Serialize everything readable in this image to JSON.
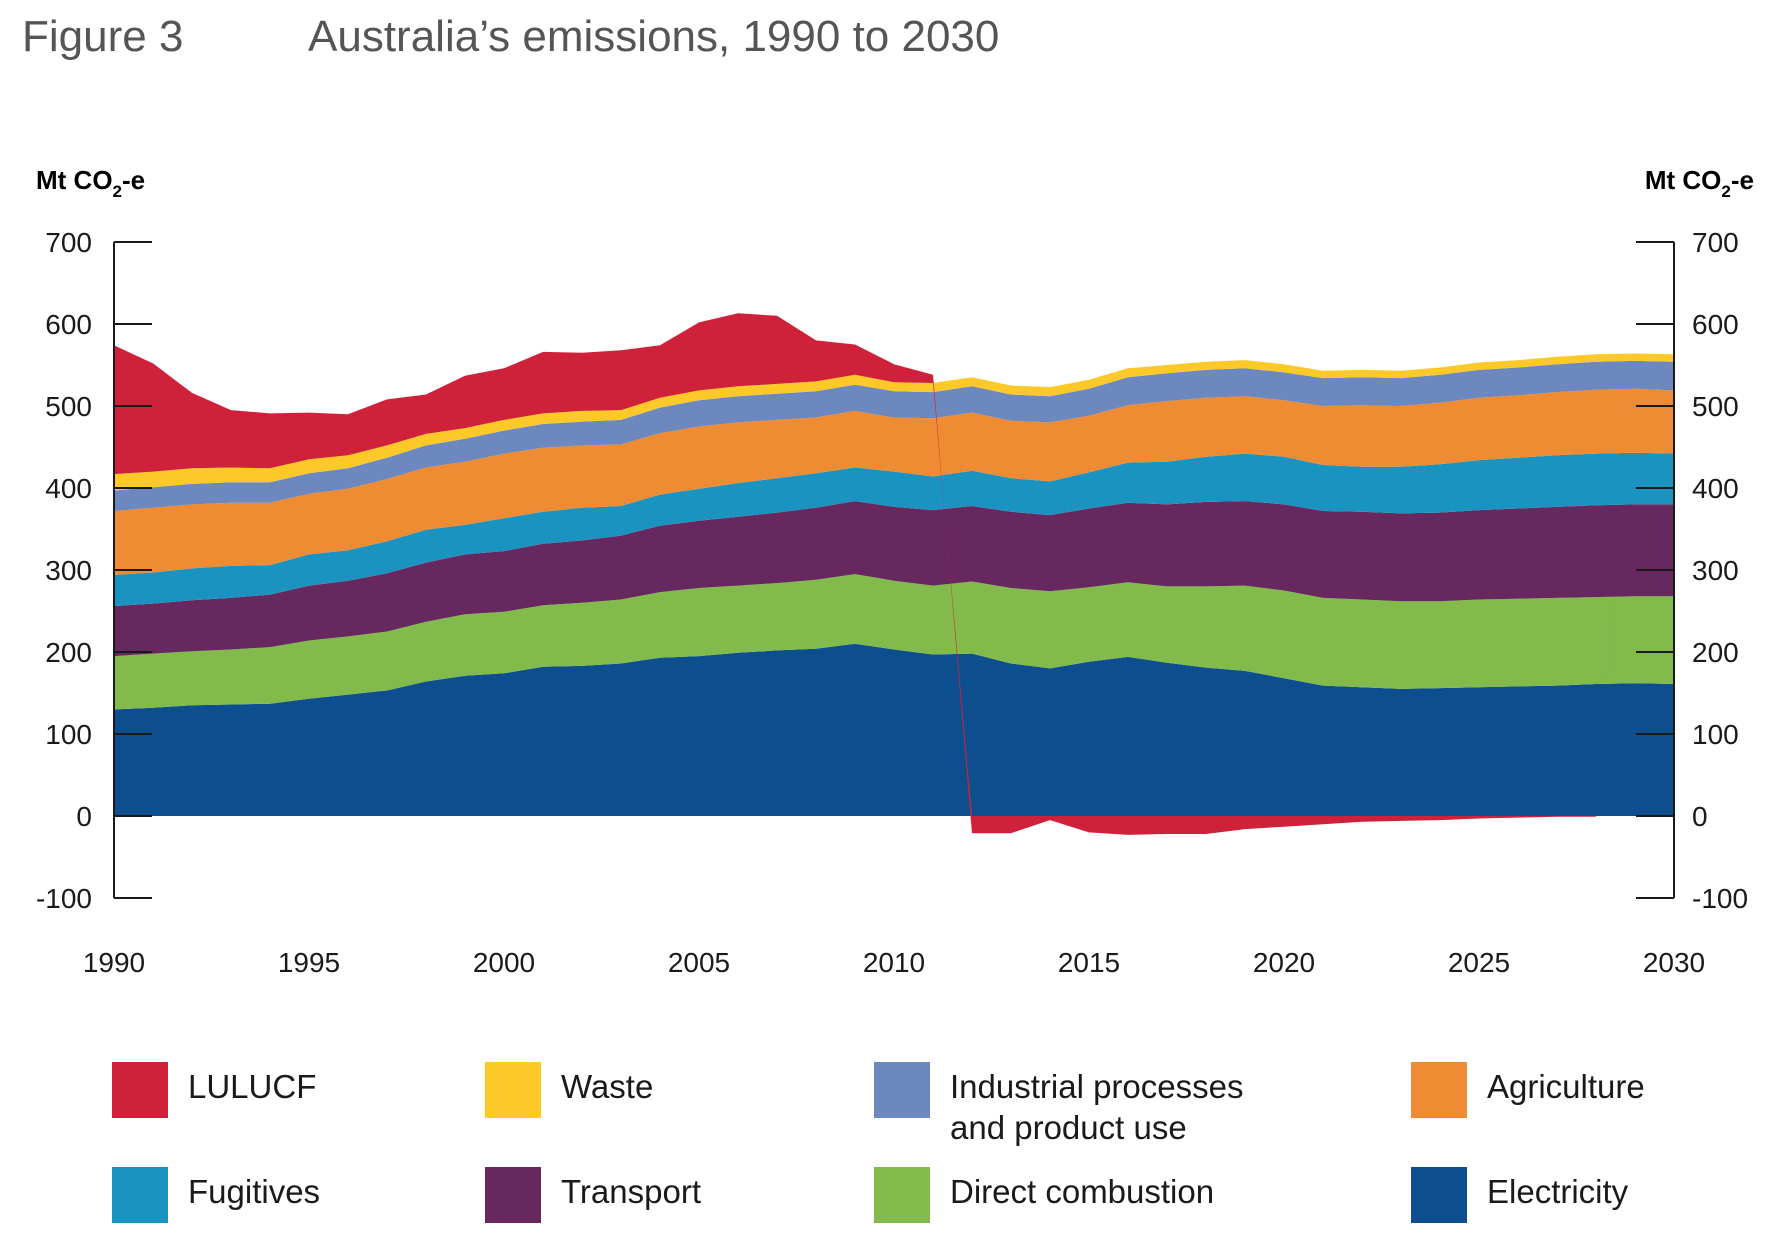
{
  "figure": {
    "label": "Figure 3",
    "title": "Australia’s emissions, 1990 to 2030"
  },
  "colors": {
    "LULUCF": "#d0213a",
    "Waste": "#fcc928",
    "Industrial processes and product use": "#6c88be",
    "Agriculture": "#ee8b33",
    "Fugitives": "#1b93c0",
    "Transport": "#66285f",
    "Direct combustion": "#83ba4c",
    "Electricity": "#0d4f8e"
  },
  "legend": {
    "items": [
      {
        "key": "LULUCF",
        "lines": [
          "LULUCF"
        ]
      },
      {
        "key": "Waste",
        "lines": [
          "Waste"
        ]
      },
      {
        "key": "Industrial processes and product use",
        "lines": [
          "Industrial processes",
          "and product use"
        ]
      },
      {
        "key": "Agriculture",
        "lines": [
          "Agriculture"
        ]
      },
      {
        "key": "Fugitives",
        "lines": [
          "Fugitives"
        ]
      },
      {
        "key": "Transport",
        "lines": [
          "Transport"
        ]
      },
      {
        "key": "Direct combustion",
        "lines": [
          "Direct combustion"
        ]
      },
      {
        "key": "Electricity",
        "lines": [
          "Electricity"
        ]
      }
    ]
  },
  "chart_data": {
    "type": "area",
    "stacked": true,
    "title": "Australia’s emissions, 1990 to 2030",
    "ylabel": "Mt CO2-e",
    "ylabel_main": "Mt CO",
    "ylabel_sub": "2",
    "ylabel_suffix": "-e",
    "ylim": [
      -100,
      700
    ],
    "yticks": [
      -100,
      0,
      100,
      200,
      300,
      400,
      500,
      600,
      700
    ],
    "yticklabels": [
      "-100",
      "0",
      "100",
      "200",
      "300",
      "400",
      "500",
      "600",
      "700"
    ],
    "xlim": [
      1990,
      2030
    ],
    "xticks": [
      1990,
      1995,
      2000,
      2005,
      2010,
      2015,
      2020,
      2025,
      2030
    ],
    "xticklabels": [
      "1990",
      "1995",
      "2000",
      "2005",
      "2010",
      "2015",
      "2020",
      "2025",
      "2030"
    ],
    "x": [
      1990,
      1991,
      1992,
      1993,
      1994,
      1995,
      1996,
      1997,
      1998,
      1999,
      2000,
      2001,
      2002,
      2003,
      2004,
      2005,
      2006,
      2007,
      2008,
      2009,
      2010,
      2011,
      2012,
      2013,
      2014,
      2015,
      2016,
      2017,
      2018,
      2019,
      2020,
      2021,
      2022,
      2023,
      2024,
      2025,
      2026,
      2027,
      2028,
      2029,
      2030
    ],
    "series": [
      {
        "name": "Electricity",
        "values": [
          130,
          132,
          135,
          136,
          137,
          143,
          148,
          153,
          164,
          171,
          174,
          182,
          183,
          186,
          193,
          195,
          199,
          202,
          204,
          210,
          203,
          197,
          198,
          186,
          180,
          188,
          194,
          187,
          181,
          177,
          168,
          159,
          157,
          155,
          156,
          157,
          158,
          159,
          161,
          162,
          161
        ]
      },
      {
        "name": "Direct combustion",
        "values": [
          65,
          66,
          66,
          67,
          69,
          71,
          71,
          72,
          73,
          75,
          75,
          75,
          77,
          78,
          80,
          83,
          82,
          82,
          84,
          85,
          84,
          84,
          88,
          92,
          94,
          91,
          91,
          93,
          99,
          104,
          107,
          107,
          107,
          107,
          106,
          107,
          107,
          107,
          106,
          106,
          107
        ]
      },
      {
        "name": "Transport",
        "values": [
          61,
          61,
          62,
          63,
          64,
          67,
          68,
          71,
          72,
          73,
          74,
          75,
          76,
          78,
          81,
          82,
          84,
          86,
          88,
          89,
          90,
          92,
          92,
          93,
          93,
          96,
          97,
          100,
          103,
          103,
          105,
          106,
          107,
          107,
          108,
          109,
          110,
          111,
          112,
          112,
          112
        ]
      },
      {
        "name": "Fugitives",
        "values": [
          38,
          38,
          39,
          39,
          36,
          38,
          37,
          39,
          40,
          36,
          40,
          39,
          40,
          36,
          38,
          39,
          41,
          42,
          42,
          41,
          43,
          41,
          43,
          41,
          41,
          44,
          49,
          52,
          55,
          58,
          58,
          56,
          55,
          57,
          59,
          61,
          62,
          63,
          63,
          63,
          62
        ]
      },
      {
        "name": "Agriculture",
        "values": [
          78,
          79,
          78,
          77,
          76,
          74,
          75,
          76,
          76,
          77,
          79,
          78,
          76,
          75,
          75,
          76,
          74,
          71,
          68,
          69,
          66,
          71,
          71,
          70,
          72,
          69,
          70,
          74,
          72,
          70,
          69,
          72,
          75,
          74,
          75,
          76,
          76,
          77,
          78,
          78,
          77
        ]
      },
      {
        "name": "Industrial processes and product use",
        "values": [
          25,
          25,
          25,
          25,
          25,
          25,
          25,
          26,
          27,
          28,
          28,
          29,
          29,
          30,
          31,
          32,
          32,
          32,
          32,
          32,
          32,
          32,
          32,
          32,
          32,
          33,
          34,
          34,
          34,
          34,
          34,
          34,
          34,
          34,
          34,
          34,
          34,
          34,
          34,
          34,
          35
        ]
      },
      {
        "name": "Waste",
        "values": [
          20,
          19,
          19,
          18,
          17,
          17,
          16,
          15,
          14,
          13,
          13,
          13,
          13,
          12,
          12,
          12,
          12,
          12,
          12,
          12,
          11,
          11,
          11,
          11,
          11,
          11,
          11,
          10,
          10,
          10,
          10,
          9,
          9,
          9,
          9,
          9,
          9,
          9,
          9,
          9,
          9
        ]
      },
      {
        "name": "LULUCF",
        "values": [
          157,
          132,
          92,
          70,
          67,
          57,
          50,
          56,
          48,
          64,
          63,
          75,
          71,
          73,
          64,
          83,
          89,
          83,
          50,
          37,
          22,
          10,
          -21,
          -21,
          -5,
          -20,
          -23,
          -22,
          -22,
          -16,
          -13,
          -10,
          -7,
          -6,
          -5,
          -3,
          -2,
          -1,
          -1,
          0,
          0
        ]
      }
    ]
  }
}
